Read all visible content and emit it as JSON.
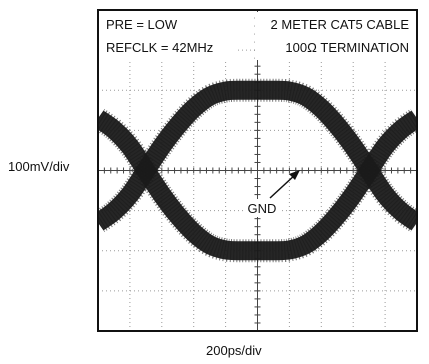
{
  "chart_data": {
    "type": "line",
    "title": "",
    "xlabel": "200ps/div",
    "ylabel": "100mV/div",
    "grid": true,
    "xdiv": 10,
    "ydiv": 8,
    "annotations_left": [
      "PRE = LOW",
      "REFCLK = 42MHz"
    ],
    "annotations_right": [
      "2 METER CAT5 CABLE",
      "100Ω TERMINATION"
    ],
    "marker_label": "GND",
    "x": [
      0,
      0.5,
      1,
      1.5,
      2,
      2.5,
      3,
      3.5,
      4,
      4.5,
      5,
      5.5,
      6,
      6.5,
      7,
      7.5,
      8,
      8.5,
      9,
      9.5,
      10
    ],
    "series": [
      {
        "values": [
          1.3,
          1.02,
          0.6,
          0.0,
          -0.6,
          -1.12,
          -1.55,
          -1.85,
          -1.98,
          -2.0,
          -2.0,
          -2.0,
          -1.98,
          -1.85,
          -1.55,
          -1.12,
          -0.6,
          0.0,
          0.6,
          1.02,
          1.3
        ]
      },
      {
        "values": [
          -1.3,
          -1.02,
          -0.6,
          0.0,
          0.6,
          1.12,
          1.55,
          1.85,
          1.98,
          2.0,
          2.0,
          2.0,
          1.98,
          1.85,
          1.55,
          1.12,
          0.6,
          0.0,
          -0.6,
          -1.02,
          -1.3
        ]
      }
    ],
    "colors": {
      "trace": "#1a1a1a",
      "grid": "#9a9a9a",
      "frame": "#111111"
    }
  }
}
